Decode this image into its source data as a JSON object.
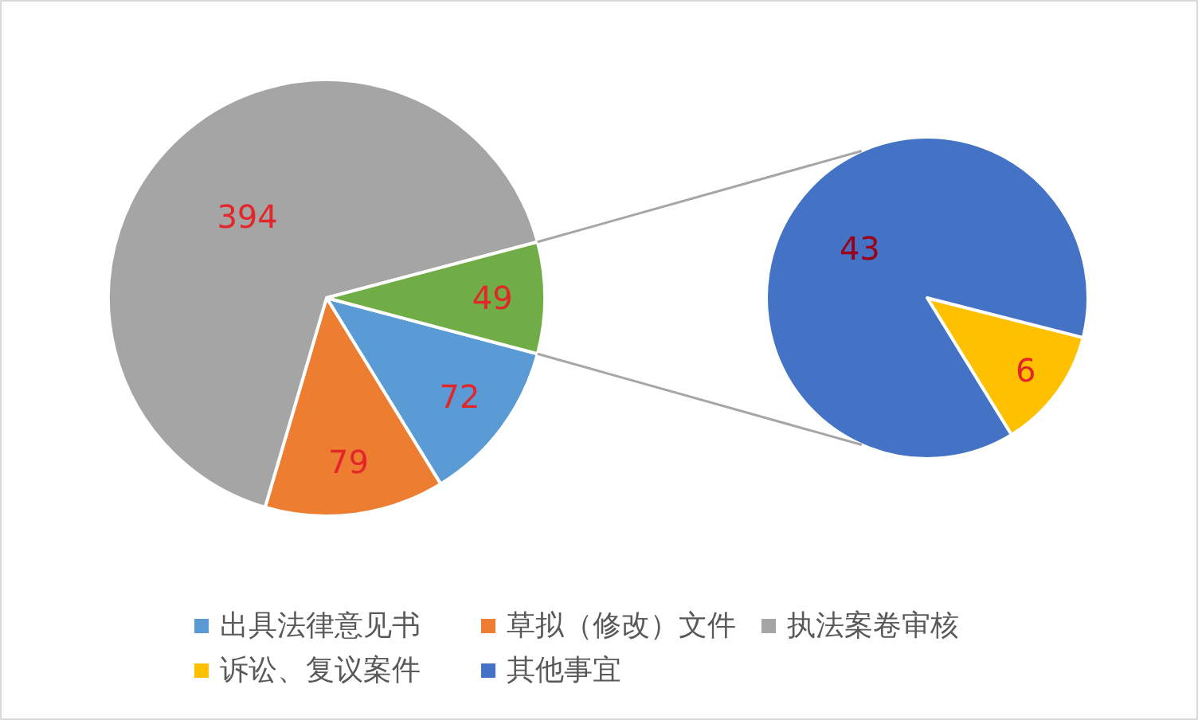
{
  "chart_data": [
    {
      "type": "pie",
      "categories": [
        "出具法律意见书",
        "草拟（修改）文件",
        "执法案卷审核",
        null
      ],
      "values": [
        72,
        79,
        394,
        49
      ],
      "colors": [
        "#5b9bd5",
        "#ed7d31",
        "#a5a5a5",
        "#70ad47"
      ],
      "data_labels": true,
      "legend": "bottom"
    },
    {
      "type": "pie",
      "categories": [
        "诉讼、复议案件",
        "其他事宜"
      ],
      "values": [
        6,
        43
      ],
      "colors": [
        "#ffc000",
        "#4472c4"
      ],
      "data_labels": true,
      "legend": "bottom"
    }
  ]
}
